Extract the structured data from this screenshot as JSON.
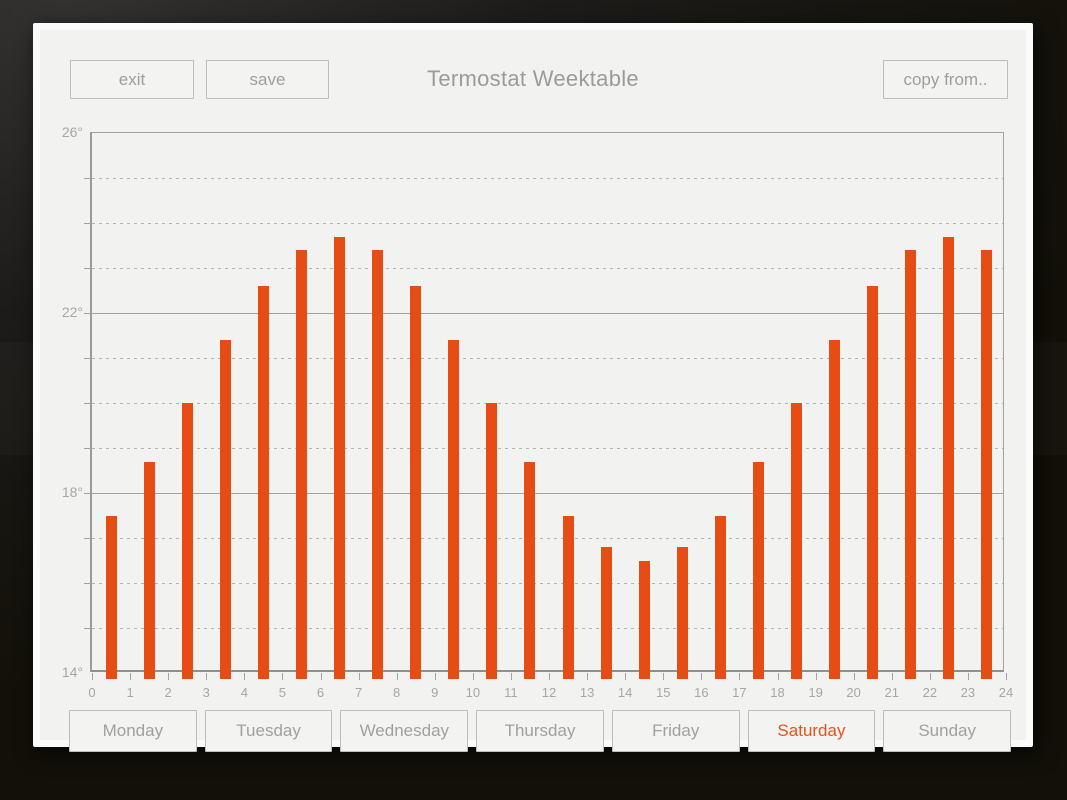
{
  "header": {
    "title": "Termostat Weektable",
    "exit_label": "exit",
    "save_label": "save",
    "copy_from_label": "copy from.."
  },
  "days": [
    {
      "label": "Monday",
      "selected": false
    },
    {
      "label": "Tuesday",
      "selected": false
    },
    {
      "label": "Wednesday",
      "selected": false
    },
    {
      "label": "Thursday",
      "selected": false
    },
    {
      "label": "Friday",
      "selected": false
    },
    {
      "label": "Saturday",
      "selected": true
    },
    {
      "label": "Sunday",
      "selected": false
    }
  ],
  "colors": {
    "bar_orange": "#e64d15",
    "selected_day_text": "#e8511a",
    "panel_background": "#f2f2f1",
    "panel_border": "#fbfbfb",
    "grid_solid": "#a2a2a2",
    "grid_dashed": "#b3b3b3",
    "muted_text": "#9e9e9e",
    "outer_background": "#1d1b19"
  },
  "chart_data": {
    "type": "bar",
    "title": "Termostat Weektable",
    "unit": "degrees",
    "hours": [
      0,
      1,
      2,
      3,
      4,
      5,
      6,
      7,
      8,
      9,
      10,
      11,
      12,
      13,
      14,
      15,
      16,
      17,
      18,
      19,
      20,
      21,
      22,
      23
    ],
    "values": [
      17.5,
      18.7,
      20.0,
      21.4,
      22.6,
      23.4,
      23.7,
      23.4,
      22.6,
      21.4,
      20.0,
      18.7,
      17.5,
      16.8,
      16.5,
      16.8,
      17.5,
      18.7,
      20.0,
      21.4,
      22.6,
      23.4,
      23.7,
      23.4
    ],
    "ylim": [
      14,
      26
    ],
    "xlim": [
      0,
      24
    ],
    "y_tick_labels": [
      "26°",
      "22°",
      "18°",
      "14°"
    ],
    "y_tick_values": [
      26,
      22,
      18,
      14
    ],
    "solid_grid_at": [
      26,
      22,
      18,
      14
    ],
    "dashed_grid_every": 1,
    "x_tick_labels": [
      "0",
      "1",
      "2",
      "3",
      "4",
      "5",
      "6",
      "7",
      "8",
      "9",
      "10",
      "11",
      "12",
      "13",
      "14",
      "15",
      "16",
      "17",
      "18",
      "19",
      "20",
      "21",
      "22",
      "23",
      "24"
    ],
    "legend": "none",
    "grid": "solid every 4 degrees, dashed every 1 degree",
    "bar_color": "#e64d15"
  }
}
